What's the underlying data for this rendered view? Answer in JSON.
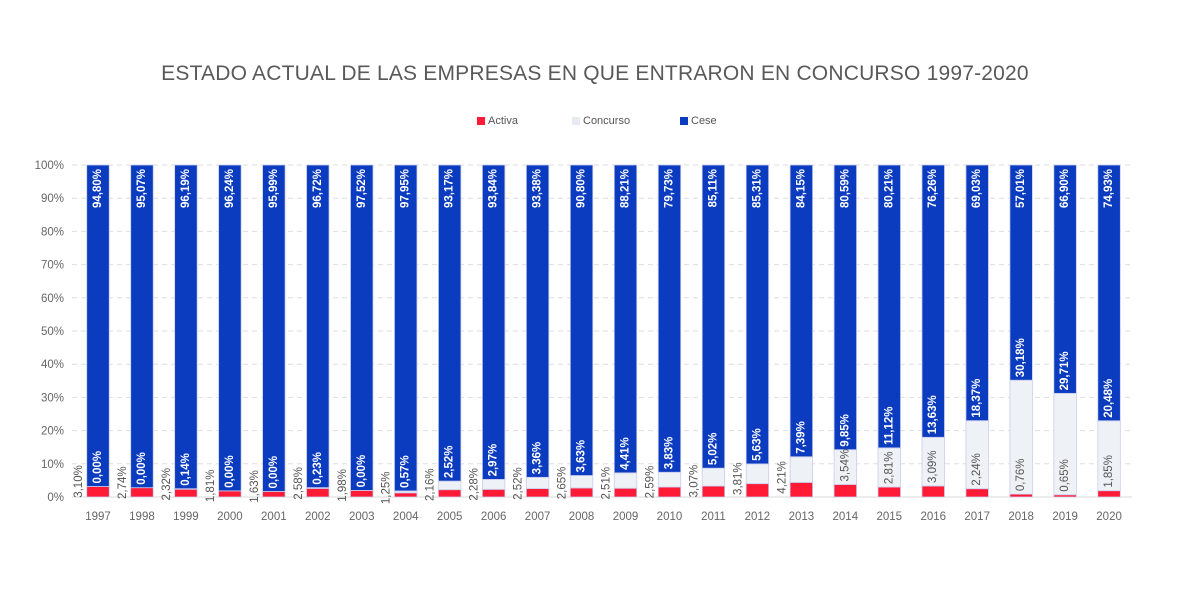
{
  "chart_data": {
    "type": "bar",
    "stacking": "100% stacked",
    "title": "ESTADO ACTUAL DE LAS EMPRESAS EN QUE ENTRARON EN CONCURSO 1997-2020",
    "xlabel": "",
    "ylabel": "",
    "ylim": [
      0,
      100
    ],
    "yticks": [
      0,
      10,
      20,
      30,
      40,
      50,
      60,
      70,
      80,
      90,
      100
    ],
    "ytick_labels": [
      "0%",
      "10%",
      "20%",
      "30%",
      "40%",
      "50%",
      "60%",
      "70%",
      "80%",
      "90%",
      "100%"
    ],
    "grid": true,
    "legend": {
      "position": "top-center"
    },
    "categories": [
      "1997",
      "1998",
      "1999",
      "2000",
      "2001",
      "2002",
      "2003",
      "2004",
      "2005",
      "2006",
      "2007",
      "2008",
      "2009",
      "2010",
      "2011",
      "2012",
      "2013",
      "2014",
      "2015",
      "2016",
      "2017",
      "2018",
      "2019",
      "2020"
    ],
    "series": [
      {
        "name": "Activa",
        "color": "#ff1a35",
        "values": [
          3.1,
          2.74,
          2.32,
          1.81,
          1.63,
          2.58,
          1.98,
          1.25,
          2.16,
          2.28,
          2.52,
          2.65,
          2.51,
          2.59,
          3.07,
          3.81,
          4.21,
          3.54,
          2.81,
          3.09,
          2.24,
          0.76,
          0.65,
          1.85
        ],
        "labels": [
          "3,10%",
          "2,74%",
          "2,32%",
          "1,81%",
          "1,63%",
          "2,58%",
          "1,98%",
          "1,25%",
          "2,16%",
          "2,28%",
          "2,52%",
          "2,65%",
          "2,51%",
          "2,59%",
          "3,07%",
          "3,81%",
          "4,21%",
          "3,54%",
          "2,81%",
          "3,09%",
          "2,24%",
          "0,76%",
          "0,65%",
          "1,85%"
        ]
      },
      {
        "name": "Concurso",
        "color": "#eef2f6",
        "values": [
          0.0,
          0.0,
          0.14,
          0.0,
          0.0,
          0.23,
          0.0,
          0.57,
          2.52,
          2.97,
          3.36,
          3.63,
          4.41,
          3.83,
          5.02,
          5.63,
          7.39,
          9.85,
          11.12,
          13.63,
          18.37,
          30.18,
          29.71,
          20.48
        ],
        "labels": [
          "0,00%",
          "0,00%",
          "0,14%",
          "0,00%",
          "0,00%",
          "0,23%",
          "0,00%",
          "0,57%",
          "2,52%",
          "2,97%",
          "3,36%",
          "3,63%",
          "4,41%",
          "3,83%",
          "5,02%",
          "5,63%",
          "7,39%",
          "9,85%",
          "11,12%",
          "13,63%",
          "18,37%",
          "30,18%",
          "29,71%",
          "20,48%"
        ]
      },
      {
        "name": "Cese",
        "color": "#0b3bbf",
        "values": [
          94.8,
          95.07,
          96.19,
          96.24,
          95.99,
          96.72,
          97.52,
          97.95,
          93.17,
          93.84,
          93.38,
          90.8,
          88.21,
          79.73,
          85.11,
          85.31,
          84.15,
          80.59,
          80.21,
          76.26,
          69.03,
          57.01,
          66.9,
          74.93
        ],
        "labels": [
          "94,80%",
          "95,07%",
          "96,19%",
          "96,24%",
          "95,99%",
          "96,72%",
          "97,52%",
          "97,95%",
          "93,17%",
          "93,84%",
          "93,38%",
          "90,80%",
          "88,21%",
          "79,73%",
          "85,11%",
          "85,31%",
          "84,15%",
          "80,59%",
          "80,21%",
          "76,26%",
          "69,03%",
          "57,01%",
          "66,90%",
          "74,93%"
        ]
      }
    ]
  }
}
